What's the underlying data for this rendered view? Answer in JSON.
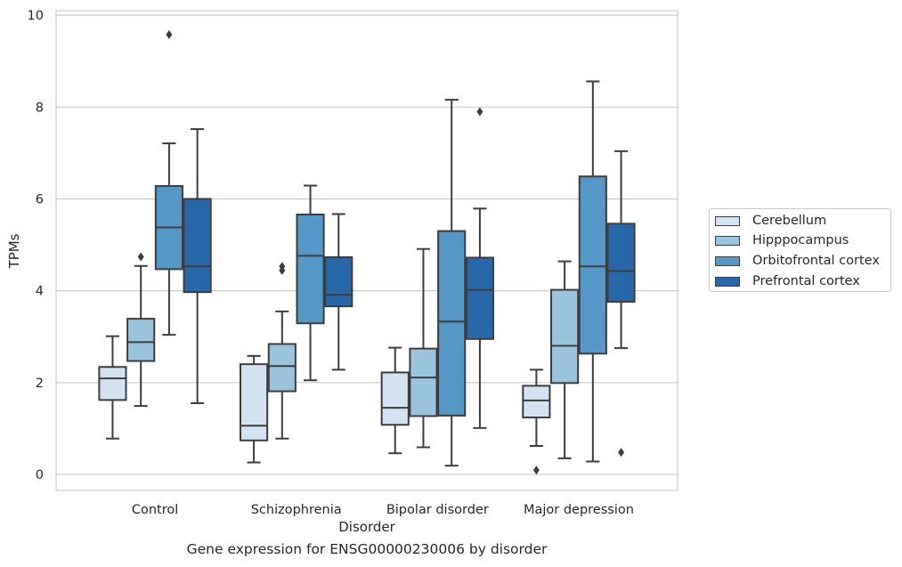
{
  "caption": "Gene expression for ENSG00000230006 by disorder",
  "chart_data": {
    "type": "boxplot",
    "xlabel": "Disorder",
    "ylabel": "TPMs",
    "ylim": [
      -0.35,
      10.1
    ],
    "yticks": [
      0,
      2,
      4,
      6,
      8,
      10
    ],
    "grid": "horizontal",
    "legend_position": "right",
    "categories": [
      "Control",
      "Schizophrenia",
      "Bipolar disorder",
      "Major depression"
    ],
    "series": [
      {
        "name": "Cerebellum",
        "color": "#d4e3f2",
        "boxes": [
          {
            "whisker_low": 0.78,
            "q1": 1.62,
            "median": 2.09,
            "q3": 2.34,
            "whisker_high": 3.01,
            "outliers": []
          },
          {
            "whisker_low": 0.26,
            "q1": 0.74,
            "median": 1.06,
            "q3": 2.4,
            "whisker_high": 2.58,
            "outliers": []
          },
          {
            "whisker_low": 0.46,
            "q1": 1.08,
            "median": 1.45,
            "q3": 2.22,
            "whisker_high": 2.76,
            "outliers": []
          },
          {
            "whisker_low": 0.62,
            "q1": 1.24,
            "median": 1.61,
            "q3": 1.93,
            "whisker_high": 2.28,
            "outliers": [
              0.09
            ]
          }
        ]
      },
      {
        "name": "Hipppocampus",
        "color": "#9ac4de",
        "boxes": [
          {
            "whisker_low": 1.49,
            "q1": 2.47,
            "median": 2.88,
            "q3": 3.39,
            "whisker_high": 4.54,
            "outliers": [
              4.74
            ]
          },
          {
            "whisker_low": 0.78,
            "q1": 1.81,
            "median": 2.36,
            "q3": 2.84,
            "whisker_high": 3.55,
            "outliers": [
              4.44,
              4.53
            ]
          },
          {
            "whisker_low": 0.59,
            "q1": 1.27,
            "median": 2.11,
            "q3": 2.74,
            "whisker_high": 4.91,
            "outliers": []
          },
          {
            "whisker_low": 0.35,
            "q1": 1.99,
            "median": 2.8,
            "q3": 4.02,
            "whisker_high": 4.64,
            "outliers": []
          }
        ]
      },
      {
        "name": "Orbitofrontal cortex",
        "color": "#5597c6",
        "boxes": [
          {
            "whisker_low": 3.04,
            "q1": 4.47,
            "median": 5.38,
            "q3": 6.28,
            "whisker_high": 7.21,
            "outliers": [
              9.58
            ]
          },
          {
            "whisker_low": 2.05,
            "q1": 3.29,
            "median": 4.76,
            "q3": 5.66,
            "whisker_high": 6.29,
            "outliers": []
          },
          {
            "whisker_low": 0.19,
            "q1": 1.28,
            "median": 3.33,
            "q3": 5.3,
            "whisker_high": 8.16,
            "outliers": []
          },
          {
            "whisker_low": 0.28,
            "q1": 2.63,
            "median": 4.53,
            "q3": 6.49,
            "whisker_high": 8.56,
            "outliers": []
          }
        ]
      },
      {
        "name": "Prefrontal cortex",
        "color": "#2868a8",
        "boxes": [
          {
            "whisker_low": 1.55,
            "q1": 3.97,
            "median": 4.53,
            "q3": 6.0,
            "whisker_high": 7.52,
            "outliers": []
          },
          {
            "whisker_low": 2.28,
            "q1": 3.66,
            "median": 3.91,
            "q3": 4.73,
            "whisker_high": 5.67,
            "outliers": []
          },
          {
            "whisker_low": 1.01,
            "q1": 2.95,
            "median": 4.02,
            "q3": 4.72,
            "whisker_high": 5.79,
            "outliers": [
              7.9
            ]
          },
          {
            "whisker_low": 2.75,
            "q1": 3.76,
            "median": 4.43,
            "q3": 5.46,
            "whisker_high": 7.04,
            "outliers": [
              0.48
            ]
          }
        ]
      }
    ]
  }
}
